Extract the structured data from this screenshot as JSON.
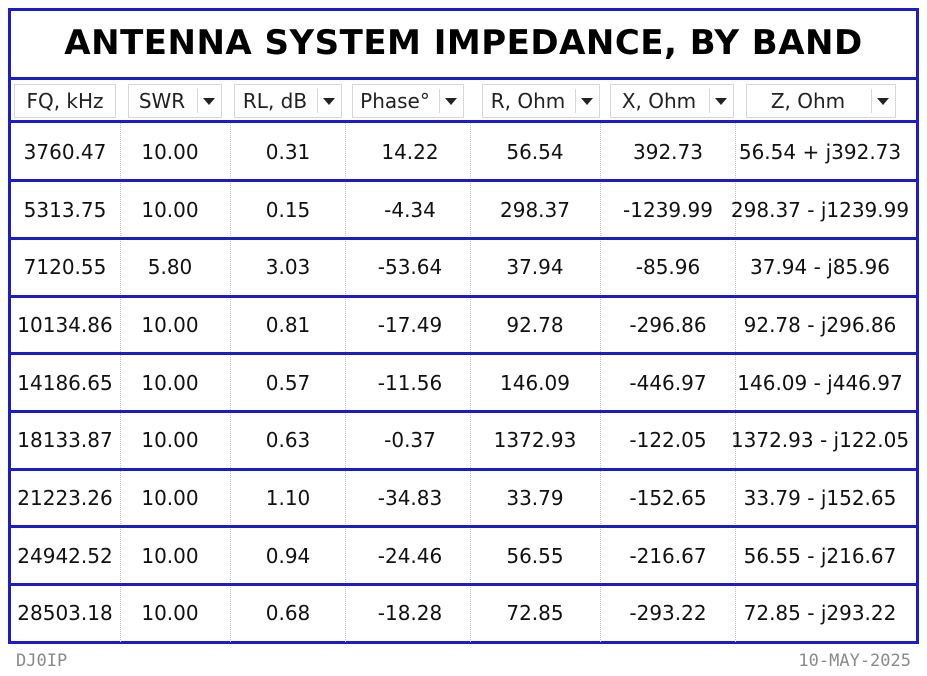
{
  "title": "ANTENNA SYSTEM IMPEDANCE, BY BAND",
  "table": {
    "headers": [
      "FQ, kHz",
      "SWR",
      "RL, dB",
      "Phase°",
      "R, Ohm",
      "X, Ohm",
      "Z, Ohm"
    ],
    "rows": [
      [
        "3760.47",
        "10.00",
        "0.31",
        "14.22",
        "56.54",
        "392.73",
        "56.54 + j392.73"
      ],
      [
        "5313.75",
        "10.00",
        "0.15",
        "-4.34",
        "298.37",
        "-1239.99",
        "298.37 - j1239.99"
      ],
      [
        "7120.55",
        "5.80",
        "3.03",
        "-53.64",
        "37.94",
        "-85.96",
        "37.94 - j85.96"
      ],
      [
        "10134.86",
        "10.00",
        "0.81",
        "-17.49",
        "92.78",
        "-296.86",
        "92.78 - j296.86"
      ],
      [
        "14186.65",
        "10.00",
        "0.57",
        "-11.56",
        "146.09",
        "-446.97",
        "146.09 - j446.97"
      ],
      [
        "18133.87",
        "10.00",
        "0.63",
        "-0.37",
        "1372.93",
        "-122.05",
        "1372.93 - j122.05"
      ],
      [
        "21223.26",
        "10.00",
        "1.10",
        "-34.83",
        "33.79",
        "-152.65",
        "33.79 - j152.65"
      ],
      [
        "24942.52",
        "10.00",
        "0.94",
        "-24.46",
        "56.55",
        "-216.67",
        "56.55 - j216.67"
      ],
      [
        "28503.18",
        "10.00",
        "0.68",
        "-18.28",
        "72.85",
        "-293.22",
        "72.85 - j293.22"
      ]
    ]
  },
  "footer": {
    "left": "DJ0IP",
    "right": "10-MAY-2025"
  }
}
